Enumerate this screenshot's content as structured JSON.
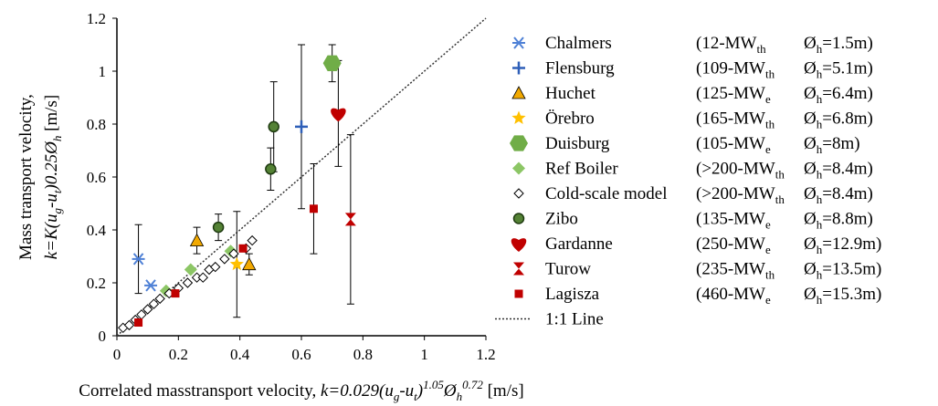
{
  "chart_data": {
    "type": "scatter",
    "xlabel": [
      {
        "text": "Correlated masstransport velocity, "
      },
      {
        "text": "k=0.029(u",
        "italic": true
      },
      {
        "text": "g",
        "italic": true,
        "sub": true
      },
      {
        "text": "-u",
        "italic": true
      },
      {
        "text": "t",
        "italic": true,
        "sub": true
      },
      {
        "text": ")",
        "italic": true
      },
      {
        "text": "1.05",
        "italic": true,
        "sup": true
      },
      {
        "text": "Ø",
        "italic": true
      },
      {
        "text": "h",
        "italic": true,
        "sub": true
      },
      {
        "text": "0.72",
        "italic": true,
        "sup": true
      },
      {
        "text": " [m/s]"
      }
    ],
    "ylabel": [
      [
        {
          "text": "Mass transport velocity,"
        }
      ],
      [
        {
          "text": "k=K(u",
          "italic": true
        },
        {
          "text": "g",
          "italic": true,
          "sub": true
        },
        {
          "text": "-u",
          "italic": true
        },
        {
          "text": "t",
          "italic": true,
          "sub": true
        },
        {
          "text": ")0.25Ø",
          "italic": true
        },
        {
          "text": "h",
          "italic": true,
          "sub": true
        },
        {
          "text": " [m/s]"
        }
      ]
    ],
    "xlim": [
      0,
      1.2
    ],
    "xticks": [
      0,
      0.2,
      0.4,
      0.6,
      0.8,
      1,
      1.2
    ],
    "ylim": [
      0,
      1.2
    ],
    "yticks": [
      0,
      0.2,
      0.4,
      0.6,
      0.8,
      1,
      1.2
    ],
    "reference_line": {
      "name": "1:1 Line",
      "x": [
        0,
        1.2
      ],
      "values": [
        0,
        1.2
      ]
    },
    "series": [
      {
        "name": "Chalmers",
        "color": "#4f81d6",
        "marker": "asterisk",
        "note": {
          "rating": [
            {
              "text": "(12-MW"
            },
            {
              "text": "th",
              "sub": true
            }
          ],
          "diameter": [
            {
              "text": "Ø"
            },
            {
              "text": "h",
              "sub": true
            },
            {
              "text": "=1.5m)"
            }
          ]
        },
        "x": [
          0.07,
          0.11
        ],
        "values": [
          0.29,
          0.19
        ],
        "errors": [
          0.13,
          null
        ]
      },
      {
        "name": "Flensburg",
        "color": "#2e5fb8",
        "marker": "plus",
        "note": {
          "rating": [
            {
              "text": "(109-MW"
            },
            {
              "text": "th",
              "sub": true
            }
          ],
          "diameter": [
            {
              "text": "Ø"
            },
            {
              "text": "h",
              "sub": true
            },
            {
              "text": "=5.1m)"
            }
          ]
        },
        "x": [
          0.6
        ],
        "values": [
          0.79
        ],
        "errors": [
          0.31
        ]
      },
      {
        "name": "Huchet",
        "color": "#f2a900",
        "marker": "triangle",
        "note": {
          "rating": [
            {
              "text": "(125-MW"
            },
            {
              "text": "e",
              "sub": true
            }
          ],
          "diameter": [
            {
              "text": "Ø"
            },
            {
              "text": "h",
              "sub": true
            },
            {
              "text": "=6.4m)"
            }
          ]
        },
        "x": [
          0.26,
          0.43
        ],
        "values": [
          0.36,
          0.27
        ],
        "errors": [
          0.05,
          0.04
        ]
      },
      {
        "name": "Örebro",
        "color": "#ffc000",
        "marker": "star",
        "note": {
          "rating": [
            {
              "text": "(165-MW"
            },
            {
              "text": "th",
              "sub": true
            }
          ],
          "diameter": [
            {
              "text": "Ø"
            },
            {
              "text": "h",
              "sub": true
            },
            {
              "text": "=6.8m)"
            }
          ]
        },
        "x": [
          0.39
        ],
        "values": [
          0.27
        ],
        "errors": [
          0.2
        ]
      },
      {
        "name": "Duisburg",
        "color": "#70ad47",
        "marker": "hexagon",
        "note": {
          "rating": [
            {
              "text": "(105-MW"
            },
            {
              "text": "e",
              "sub": true
            }
          ],
          "diameter": [
            {
              "text": "Ø"
            },
            {
              "text": "h",
              "sub": true
            },
            {
              "text": "=8m)"
            }
          ]
        },
        "x": [
          0.7
        ],
        "values": [
          1.03
        ],
        "errors": [
          0.07
        ]
      },
      {
        "name": "Ref Boiler",
        "color": "#8cc665",
        "marker": "diamond",
        "note": {
          "rating": [
            {
              "text": "(>200-MW"
            },
            {
              "text": "th",
              "sub": true
            }
          ],
          "diameter": [
            {
              "text": "Ø"
            },
            {
              "text": "h",
              "sub": true
            },
            {
              "text": "=8.4m)"
            }
          ]
        },
        "x": [
          0.16,
          0.24,
          0.37
        ],
        "values": [
          0.17,
          0.25,
          0.32
        ],
        "errors": [
          null,
          null,
          null
        ]
      },
      {
        "name": "Cold-scale model",
        "color": "#ffffff",
        "marker": "diamond-open",
        "note": {
          "rating": [
            {
              "text": "(>200-MW"
            },
            {
              "text": "th",
              "sub": true
            }
          ],
          "diameter": [
            {
              "text": "Ø"
            },
            {
              "text": "h",
              "sub": true
            },
            {
              "text": "=8.4m)"
            }
          ]
        },
        "x": [
          0.02,
          0.04,
          0.06,
          0.08,
          0.1,
          0.12,
          0.14,
          0.17,
          0.2,
          0.23,
          0.26,
          0.28,
          0.3,
          0.32,
          0.35,
          0.38,
          0.42,
          0.44
        ],
        "values": [
          0.03,
          0.04,
          0.06,
          0.08,
          0.1,
          0.12,
          0.14,
          0.16,
          0.18,
          0.2,
          0.22,
          0.22,
          0.25,
          0.26,
          0.29,
          0.31,
          0.33,
          0.36
        ],
        "errors": [
          null,
          null,
          null,
          null,
          null,
          null,
          null,
          null,
          null,
          null,
          null,
          null,
          null,
          null,
          null,
          null,
          null,
          null
        ]
      },
      {
        "name": "Zibo",
        "color": "#548235",
        "marker": "circle",
        "note": {
          "rating": [
            {
              "text": "(135-MW"
            },
            {
              "text": "e",
              "sub": true
            }
          ],
          "diameter": [
            {
              "text": "Ø"
            },
            {
              "text": "h",
              "sub": true
            },
            {
              "text": "=8.8m)"
            }
          ]
        },
        "x": [
          0.33,
          0.5,
          0.51
        ],
        "values": [
          0.41,
          0.63,
          0.79
        ],
        "errors": [
          0.05,
          0.08,
          0.17
        ]
      },
      {
        "name": "Gardanne",
        "color": "#c00000",
        "marker": "heart",
        "note": {
          "rating": [
            {
              "text": "(250-MW"
            },
            {
              "text": "e",
              "sub": true
            }
          ],
          "diameter": [
            {
              "text": "Ø"
            },
            {
              "text": "h",
              "sub": true
            },
            {
              "text": "=12.9m)"
            }
          ]
        },
        "x": [
          0.72
        ],
        "values": [
          0.84
        ],
        "errors": [
          0.2
        ]
      },
      {
        "name": "Turow",
        "color": "#c00000",
        "marker": "hourglass",
        "note": {
          "rating": [
            {
              "text": "(235-MW"
            },
            {
              "text": "th",
              "sub": true
            }
          ],
          "diameter": [
            {
              "text": "Ø"
            },
            {
              "text": "h",
              "sub": true
            },
            {
              "text": "=13.5m)"
            }
          ]
        },
        "x": [
          0.76
        ],
        "values": [
          0.44
        ],
        "errors": [
          0.32
        ]
      },
      {
        "name": "Lagisza",
        "color": "#c00000",
        "marker": "square",
        "note": {
          "rating": [
            {
              "text": "(460-MW"
            },
            {
              "text": "e",
              "sub": true
            }
          ],
          "diameter": [
            {
              "text": "Ø"
            },
            {
              "text": "h",
              "sub": true
            },
            {
              "text": "=15.3m)"
            }
          ]
        },
        "x": [
          0.07,
          0.19,
          0.41,
          0.64
        ],
        "values": [
          0.05,
          0.16,
          0.33,
          0.48
        ],
        "errors": [
          null,
          null,
          null,
          0.17
        ]
      }
    ]
  }
}
